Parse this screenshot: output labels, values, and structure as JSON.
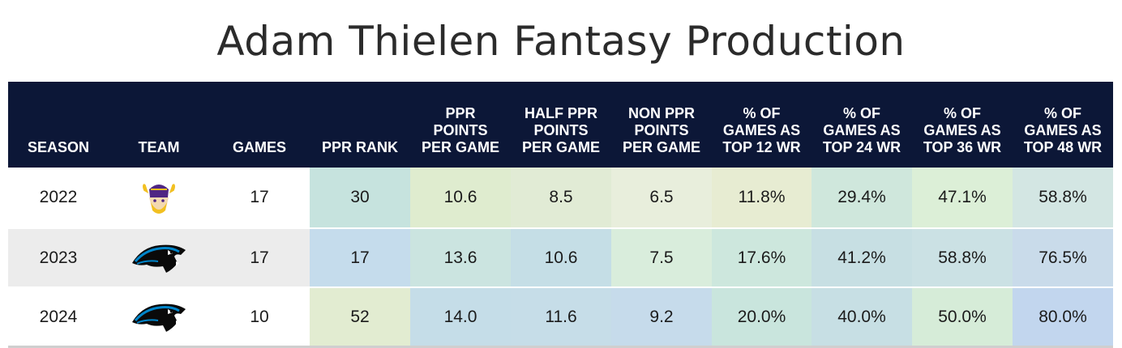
{
  "title": "Adam Thielen Fantasy Production",
  "headers": {
    "season": "SEASON",
    "team": "TEAM",
    "games": "GAMES",
    "ppr_rank": "PPR RANK",
    "ppr_ppg": [
      "PPR",
      "POINTS",
      "PER GAME"
    ],
    "half_ppg": [
      "HALF PPR",
      "POINTS",
      "PER GAME"
    ],
    "non_ppg": [
      "NON PPR",
      "POINTS",
      "PER GAME"
    ],
    "top12": [
      "% OF",
      "GAMES AS",
      "TOP 12 WR"
    ],
    "top24": [
      "% OF",
      "GAMES AS",
      "TOP 24 WR"
    ],
    "top36": [
      "% OF",
      "GAMES AS",
      "TOP 36 WR"
    ],
    "top48": [
      "% OF",
      "GAMES AS",
      "TOP 48 WR"
    ]
  },
  "rows": [
    {
      "season": "2022",
      "team_logo": "vikings-logo-icon",
      "games": "17",
      "ppr_rank": "30",
      "ppr_ppg": "10.6",
      "half_ppg": "8.5",
      "non_ppg": "6.5",
      "top12": "11.8%",
      "top24": "29.4%",
      "top36": "47.1%",
      "top48": "58.8%"
    },
    {
      "season": "2023",
      "team_logo": "panthers-logo-icon",
      "games": "17",
      "ppr_rank": "17",
      "ppr_ppg": "13.6",
      "half_ppg": "10.6",
      "non_ppg": "7.5",
      "top12": "17.6%",
      "top24": "41.2%",
      "top36": "58.8%",
      "top48": "76.5%"
    },
    {
      "season": "2024",
      "team_logo": "panthers-logo-icon",
      "games": "10",
      "ppr_rank": "52",
      "ppr_ppg": "14.0",
      "half_ppg": "11.6",
      "non_ppg": "9.2",
      "top12": "20.0%",
      "top24": "40.0%",
      "top36": "50.0%",
      "top48": "80.0%"
    }
  ],
  "cell_colors": [
    [
      "#c6e3de",
      "#dfeccf",
      "#e1ebd5",
      "#e8eedc",
      "#e7ecd2",
      "#cfe7dc",
      "#dcefd7",
      "#d3e6e3"
    ],
    [
      "#c5dcec",
      "#cbe4e0",
      "#c5dee6",
      "#d9eddc",
      "#cde7dd",
      "#c7dfe3",
      "#cbe1e4",
      "#c9dbea"
    ],
    [
      "#e2ecd1",
      "#c5dde8",
      "#c6dde8",
      "#c6dbeb",
      "#c9e5dd",
      "#c7dfe4",
      "#d6ecd8",
      "#c2d6ee"
    ]
  ],
  "colors": {
    "header_bg": "#0c1737",
    "header_text": "#ffffff",
    "shaded_row": "#ececec"
  }
}
